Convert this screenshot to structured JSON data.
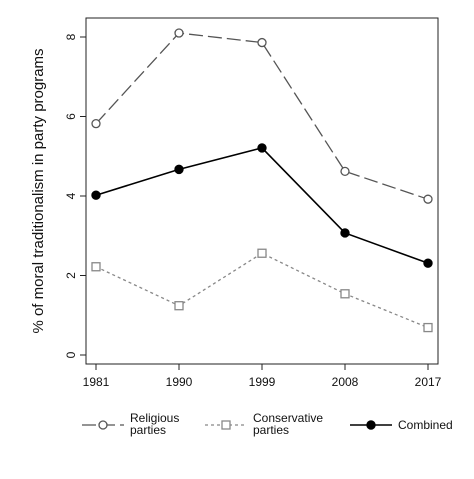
{
  "chart_data": {
    "type": "line",
    "title": "",
    "xlabel": "",
    "ylabel": "% of moral traditionalism in party programs",
    "categories": [
      "1981",
      "1990",
      "1999",
      "2008",
      "2017"
    ],
    "ylim": [
      0,
      8.4
    ],
    "yticks": [
      0,
      2,
      4,
      6,
      8
    ],
    "grid": false,
    "legend_position": "bottom",
    "series": [
      {
        "name": "Religious parties",
        "legend_lines": [
          "Religious",
          "parties"
        ],
        "values": [
          5.82,
          8.1,
          7.86,
          4.62,
          3.92
        ],
        "line_style": "long-dash",
        "marker": "open-circle",
        "color": "#555555"
      },
      {
        "name": "Conservative parties",
        "legend_lines": [
          "Conservative",
          "parties"
        ],
        "values": [
          2.22,
          1.24,
          2.56,
          1.54,
          0.69
        ],
        "line_style": "short-dash",
        "marker": "open-square",
        "color": "#888888"
      },
      {
        "name": "Combined",
        "legend_lines": [
          "Combined"
        ],
        "values": [
          4.02,
          4.67,
          5.21,
          3.07,
          2.31
        ],
        "line_style": "solid",
        "marker": "filled-circle",
        "color": "#000000"
      }
    ]
  }
}
